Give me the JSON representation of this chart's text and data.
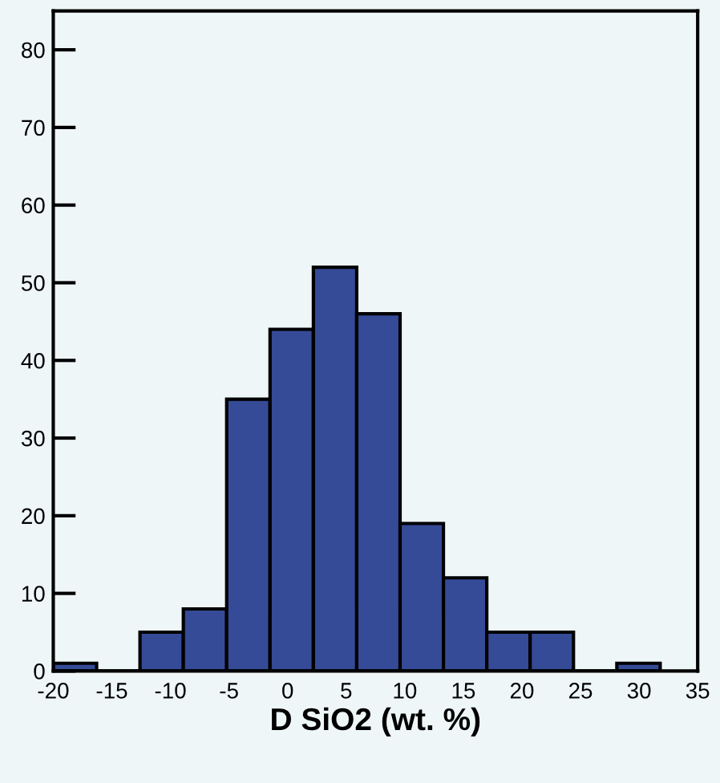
{
  "chart_data": {
    "type": "histogram",
    "xlabel": "D SiO2 (wt. %)",
    "bins": [
      -20,
      -16.3,
      -12.6,
      -8.9,
      -5.2,
      -1.5,
      2.2,
      5.9,
      9.6,
      13.3,
      17.0,
      20.7,
      24.4,
      28.1,
      31.8
    ],
    "values": [
      1,
      0,
      5,
      8,
      35,
      44,
      52,
      46,
      19,
      12,
      5,
      5,
      0,
      1
    ],
    "color": "#354b97",
    "xlim": [
      -20,
      35
    ],
    "xticks": [
      -20,
      -15,
      -10,
      -5,
      0,
      5,
      10,
      15,
      20,
      25,
      30,
      35
    ],
    "ylim": [
      0,
      85
    ],
    "yticks": [
      0,
      10,
      20,
      30,
      40,
      50,
      60,
      70,
      80
    ],
    "grid": false
  }
}
